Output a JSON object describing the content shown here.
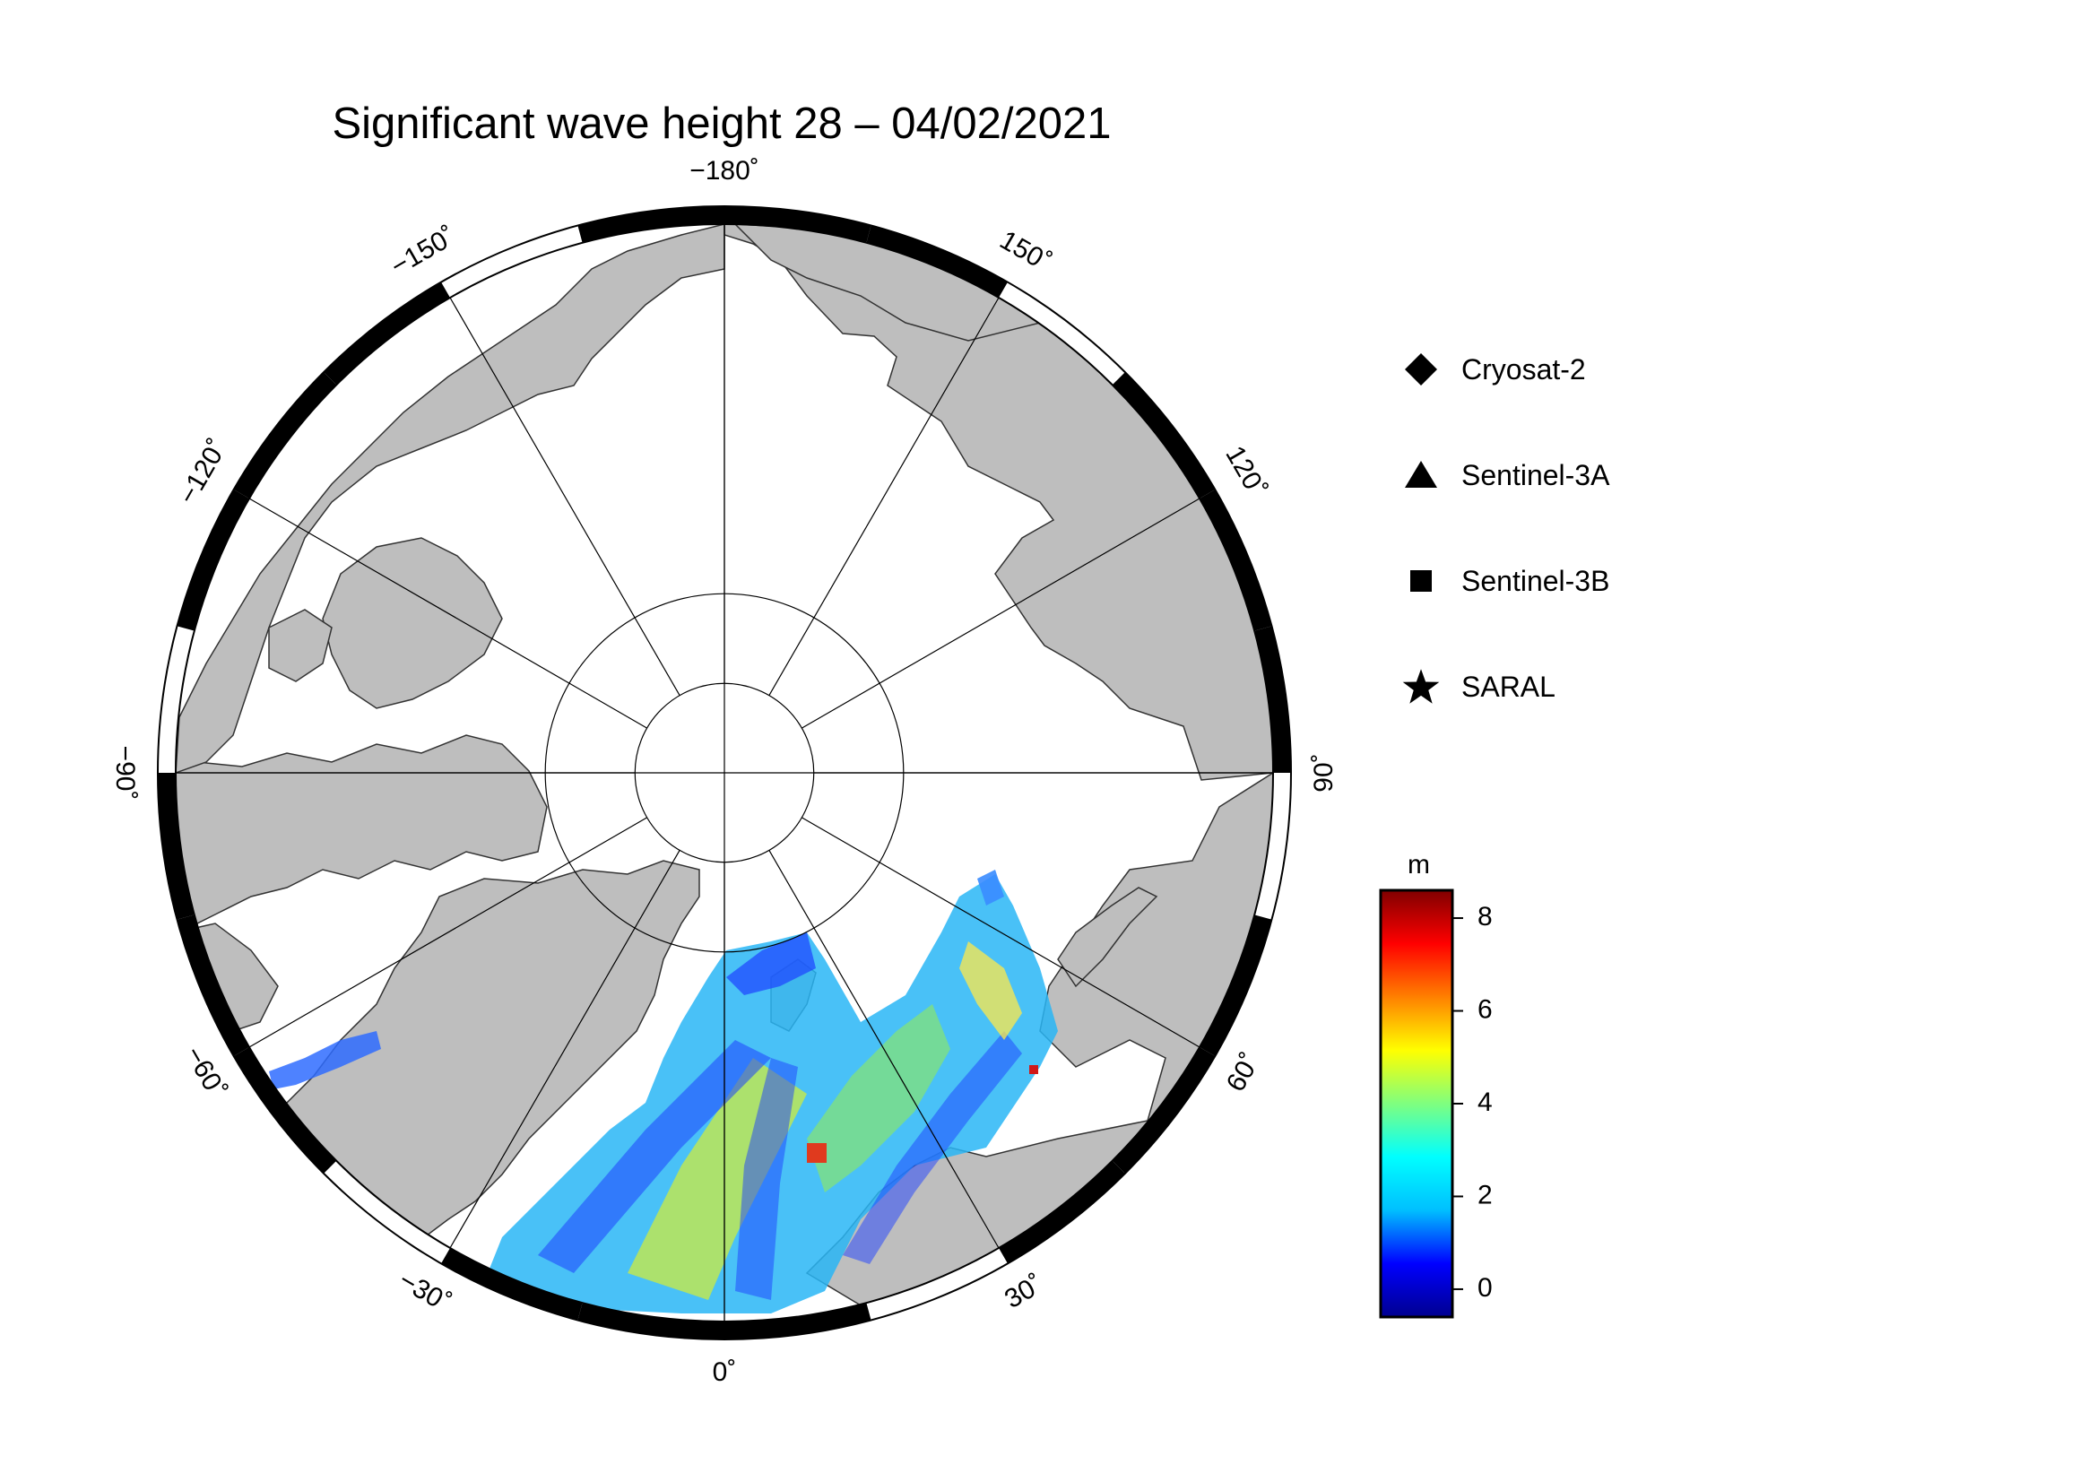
{
  "title": "Significant wave height 28 – 04/02/2021",
  "map": {
    "projection": "north polar stereographic",
    "longitude_labels": [
      {
        "text": "−180˚",
        "lon": 180
      },
      {
        "text": "150˚",
        "lon": 150
      },
      {
        "text": "120˚",
        "lon": 120
      },
      {
        "text": "90˚",
        "lon": 90
      },
      {
        "text": "60˚",
        "lon": 60
      },
      {
        "text": "30˚",
        "lon": 30
      },
      {
        "text": "0˚",
        "lon": 0
      },
      {
        "text": "−30˚",
        "lon": -30
      },
      {
        "text": "−60˚",
        "lon": -60
      },
      {
        "text": "−90˚",
        "lon": -90
      },
      {
        "text": "−120˚",
        "lon": -120
      },
      {
        "text": "−150˚",
        "lon": -150
      }
    ],
    "meridians_every_deg": 30,
    "parallel_circles_lat": [
      80,
      85
    ],
    "land_color": "#bebebe",
    "ocean_color": "#ffffff"
  },
  "legend": {
    "items": [
      {
        "label": "Cryosat-2",
        "symbol": "diamond-icon"
      },
      {
        "label": "Sentinel-3A",
        "symbol": "triangle-icon"
      },
      {
        "label": "Sentinel-3B",
        "symbol": "square-icon"
      },
      {
        "label": "SARAL",
        "symbol": "star-icon"
      }
    ]
  },
  "colorbar": {
    "unit": "m",
    "min": -0.6,
    "max": 8.6,
    "ticks": [
      0,
      2,
      4,
      6,
      8
    ],
    "colormap": [
      "#00008f",
      "#0000ff",
      "#00bfff",
      "#00ffff",
      "#7fff7f",
      "#ffff00",
      "#ff8000",
      "#ff0000",
      "#800000"
    ]
  }
}
